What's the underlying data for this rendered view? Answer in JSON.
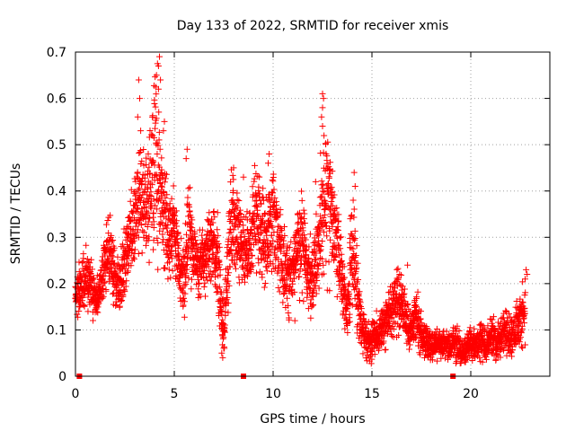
{
  "chart_data": {
    "type": "scatter",
    "title": "Day 133 of 2022, SRMTID for receiver xmis",
    "xlabel": "GPS time / hours",
    "ylabel": "SRMTID / TECUs",
    "xlim": [
      0,
      24
    ],
    "ylim": [
      0,
      0.7
    ],
    "xticks": [
      0,
      5,
      10,
      15,
      20
    ],
    "xtick_labels": [
      "0",
      "5",
      "10",
      "15",
      "20"
    ],
    "yticks": [
      0,
      0.1,
      0.2,
      0.3,
      0.4,
      0.5,
      0.6,
      0.7
    ],
    "ytick_labels": [
      "0",
      "0.1",
      "0.2",
      "0.3",
      "0.4",
      "0.5",
      "0.6",
      "0.7"
    ],
    "grid": true,
    "marker": "plus",
    "marker_color": "#ff0000",
    "grid_color": "#a0a0a0",
    "trend": {
      "x": [
        0.0,
        0.25,
        0.5,
        0.75,
        1.0,
        1.25,
        1.5,
        1.75,
        2.0,
        2.25,
        2.5,
        2.75,
        3.0,
        3.25,
        3.5,
        3.75,
        4.0,
        4.25,
        4.5,
        4.75,
        5.0,
        5.25,
        5.5,
        5.75,
        6.0,
        6.25,
        6.5,
        6.75,
        7.0,
        7.25,
        7.5,
        7.75,
        8.0,
        8.25,
        8.5,
        8.75,
        9.0,
        9.25,
        9.5,
        9.75,
        10.0,
        10.25,
        10.5,
        10.75,
        11.0,
        11.25,
        11.5,
        11.75,
        12.0,
        12.25,
        12.5,
        12.75,
        13.0,
        13.25,
        13.5,
        13.75,
        14.0,
        14.25,
        14.5,
        14.75,
        15.0,
        15.25,
        15.5,
        15.75,
        16.0,
        16.25,
        16.5,
        16.75,
        17.0,
        17.25,
        17.5,
        17.75,
        18.0,
        18.25,
        18.5,
        18.75,
        19.0,
        19.25,
        19.5,
        19.75,
        20.0,
        20.25,
        20.5,
        20.75,
        21.0,
        21.25,
        21.5,
        21.75,
        22.0,
        22.25,
        22.5,
        22.75
      ],
      "y": [
        0.18,
        0.2,
        0.22,
        0.2,
        0.17,
        0.19,
        0.24,
        0.27,
        0.22,
        0.19,
        0.25,
        0.3,
        0.34,
        0.38,
        0.36,
        0.4,
        0.48,
        0.42,
        0.35,
        0.3,
        0.33,
        0.24,
        0.21,
        0.34,
        0.26,
        0.23,
        0.25,
        0.28,
        0.3,
        0.22,
        0.1,
        0.26,
        0.35,
        0.3,
        0.28,
        0.26,
        0.32,
        0.34,
        0.3,
        0.27,
        0.36,
        0.28,
        0.25,
        0.21,
        0.22,
        0.28,
        0.3,
        0.22,
        0.2,
        0.28,
        0.35,
        0.4,
        0.32,
        0.28,
        0.2,
        0.13,
        0.3,
        0.18,
        0.1,
        0.08,
        0.07,
        0.09,
        0.1,
        0.12,
        0.14,
        0.16,
        0.15,
        0.12,
        0.1,
        0.13,
        0.09,
        0.08,
        0.07,
        0.08,
        0.06,
        0.07,
        0.06,
        0.08,
        0.05,
        0.06,
        0.07,
        0.06,
        0.08,
        0.06,
        0.09,
        0.07,
        0.08,
        0.1,
        0.08,
        0.1,
        0.12,
        0.14
      ],
      "spread": [
        0.03,
        0.04,
        0.05,
        0.04,
        0.03,
        0.03,
        0.05,
        0.05,
        0.05,
        0.04,
        0.05,
        0.06,
        0.07,
        0.09,
        0.08,
        0.1,
        0.15,
        0.1,
        0.08,
        0.06,
        0.06,
        0.05,
        0.05,
        0.08,
        0.05,
        0.05,
        0.05,
        0.06,
        0.06,
        0.07,
        0.04,
        0.08,
        0.07,
        0.06,
        0.06,
        0.06,
        0.07,
        0.08,
        0.07,
        0.07,
        0.08,
        0.07,
        0.06,
        0.05,
        0.05,
        0.07,
        0.07,
        0.06,
        0.05,
        0.06,
        0.1,
        0.12,
        0.08,
        0.06,
        0.05,
        0.03,
        0.08,
        0.06,
        0.03,
        0.03,
        0.03,
        0.03,
        0.03,
        0.04,
        0.04,
        0.05,
        0.04,
        0.04,
        0.03,
        0.04,
        0.03,
        0.03,
        0.02,
        0.03,
        0.02,
        0.02,
        0.02,
        0.03,
        0.02,
        0.02,
        0.03,
        0.02,
        0.03,
        0.02,
        0.03,
        0.03,
        0.03,
        0.03,
        0.03,
        0.03,
        0.04,
        0.05
      ]
    },
    "extra_points": [
      {
        "x": 4.15,
        "y": 0.675
      },
      {
        "x": 4.2,
        "y": 0.67
      },
      {
        "x": 4.25,
        "y": 0.69
      },
      {
        "x": 4.1,
        "y": 0.65
      },
      {
        "x": 4.3,
        "y": 0.64
      },
      {
        "x": 4.2,
        "y": 0.62
      },
      {
        "x": 3.2,
        "y": 0.64
      },
      {
        "x": 3.25,
        "y": 0.6
      },
      {
        "x": 3.3,
        "y": 0.53
      },
      {
        "x": 3.15,
        "y": 0.56
      },
      {
        "x": 12.5,
        "y": 0.61
      },
      {
        "x": 12.55,
        "y": 0.6
      },
      {
        "x": 12.5,
        "y": 0.58
      },
      {
        "x": 12.45,
        "y": 0.56
      },
      {
        "x": 12.5,
        "y": 0.54
      },
      {
        "x": 14.1,
        "y": 0.44
      },
      {
        "x": 14.15,
        "y": 0.41
      },
      {
        "x": 14.05,
        "y": 0.38
      },
      {
        "x": 5.65,
        "y": 0.49
      },
      {
        "x": 5.6,
        "y": 0.47
      },
      {
        "x": 9.8,
        "y": 0.48
      },
      {
        "x": 9.75,
        "y": 0.46
      },
      {
        "x": 8.5,
        "y": 0.43
      },
      {
        "x": 8.0,
        "y": 0.45
      },
      {
        "x": 7.4,
        "y": 0.05
      },
      {
        "x": 7.45,
        "y": 0.04
      },
      {
        "x": 7.5,
        "y": 0.06
      },
      {
        "x": 16.8,
        "y": 0.24
      },
      {
        "x": 16.4,
        "y": 0.22
      },
      {
        "x": 22.8,
        "y": 0.23
      },
      {
        "x": 22.85,
        "y": 0.22
      },
      {
        "x": 22.75,
        "y": 0.21
      },
      {
        "x": 4.5,
        "y": 0.55
      },
      {
        "x": 4.45,
        "y": 0.53
      },
      {
        "x": 11.1,
        "y": 0.12
      },
      {
        "x": 12.15,
        "y": 0.42
      }
    ],
    "zero_markers_x": [
      0.2,
      8.5,
      19.1
    ]
  }
}
